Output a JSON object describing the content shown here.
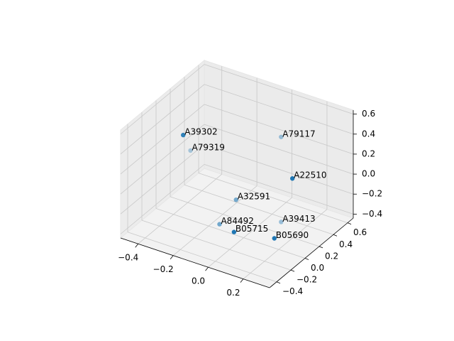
{
  "chart_data": {
    "type": "scatter3d",
    "labels": [
      "A39302",
      "A79319",
      "A79117",
      "A22510",
      "A32591",
      "A39413",
      "A84492",
      "B05715",
      "B05690"
    ],
    "x": [
      -0.24,
      -0.34,
      0.08,
      0.29,
      -0.08,
      0.08,
      -0.15,
      0.05,
      0.26
    ],
    "y": [
      -0.26,
      0.09,
      0.33,
      -0.03,
      0.09,
      0.33,
      0.03,
      -0.26,
      -0.21
    ],
    "z": [
      0.6,
      0.18,
      0.42,
      0.34,
      -0.16,
      -0.43,
      -0.41,
      -0.2,
      -0.17
    ],
    "color": "#1f77b4",
    "xlim": [
      -0.5,
      0.35
    ],
    "ylim": [
      -0.5,
      0.68
    ],
    "zlim": [
      -0.44,
      0.64
    ],
    "xticks": [
      {
        "value": -0.4,
        "label": "−0.4"
      },
      {
        "value": -0.2,
        "label": "−0.2"
      },
      {
        "value": 0,
        "label": "0.0"
      },
      {
        "value": 0.2,
        "label": "0.2"
      }
    ],
    "yticks": [
      {
        "value": -0.4,
        "label": "−0.4"
      },
      {
        "value": -0.2,
        "label": "−0.2"
      },
      {
        "value": 0,
        "label": "0.0"
      },
      {
        "value": 0.2,
        "label": "0.2"
      },
      {
        "value": 0.4,
        "label": "0.4"
      },
      {
        "value": 0.6,
        "label": "0.6"
      }
    ],
    "zticks": [
      {
        "value": -0.4,
        "label": "−0.4"
      },
      {
        "value": -0.2,
        "label": "−0.2"
      },
      {
        "value": 0,
        "label": "0.0"
      },
      {
        "value": 0.2,
        "label": "0.2"
      },
      {
        "value": 0.4,
        "label": "0.4"
      },
      {
        "value": 0.6,
        "label": "0.6"
      }
    ],
    "grid": true
  }
}
